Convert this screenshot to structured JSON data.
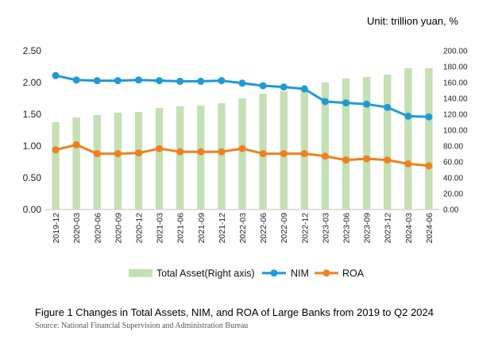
{
  "unit_label": "Unit: trillion yuan, %",
  "caption": "Figure 1 Changes in Total Assets, NIM, and ROA of Large Banks from 2019 to Q2 2024",
  "source": "Source: National Financial Supervision and Administration Bureau",
  "chart_data": {
    "type": "bar+line",
    "categories": [
      "2019-12",
      "2020-03",
      "2020-06",
      "2020-09",
      "2020-12",
      "2021-03",
      "2021-06",
      "2021-09",
      "2021-12",
      "2022-03",
      "2022-06",
      "2022-09",
      "2022-12",
      "2023-03",
      "2023-06",
      "2023-09",
      "2023-12",
      "2024-03",
      "2024-06"
    ],
    "left_axis": {
      "ylim": [
        0,
        2.5
      ],
      "ticks": [
        "0.00",
        "0.50",
        "1.00",
        "1.50",
        "2.00",
        "2.50"
      ],
      "tick_values": [
        0,
        0.5,
        1.0,
        1.5,
        2.0,
        2.5
      ]
    },
    "right_axis": {
      "ylim": [
        0,
        200
      ],
      "ticks": [
        "0.00",
        "20.00",
        "40.00",
        "60.00",
        "80.00",
        "100.00",
        "120.00",
        "140.00",
        "160.00",
        "180.00",
        "200.00"
      ],
      "tick_values": [
        0,
        20,
        40,
        60,
        80,
        100,
        120,
        140,
        160,
        180,
        200
      ]
    },
    "series": [
      {
        "name": "Total Asset(Right axis)",
        "type": "bar",
        "axis": "right",
        "color": "#c5e0b4",
        "values": [
          110,
          116,
          119,
          122,
          123,
          128,
          130,
          131,
          134,
          140,
          146,
          149,
          152,
          160,
          165,
          167,
          170,
          178,
          178
        ]
      },
      {
        "name": "NIM",
        "type": "line",
        "axis": "left",
        "color": "#1e9ad6",
        "values": [
          2.11,
          2.04,
          2.03,
          2.03,
          2.04,
          2.03,
          2.02,
          2.02,
          2.03,
          1.99,
          1.95,
          1.93,
          1.9,
          1.7,
          1.68,
          1.66,
          1.61,
          1.47,
          1.46
        ]
      },
      {
        "name": "ROA",
        "type": "line",
        "axis": "left",
        "color": "#f07f1e",
        "values": [
          0.94,
          1.02,
          0.88,
          0.88,
          0.89,
          0.96,
          0.91,
          0.91,
          0.91,
          0.96,
          0.88,
          0.88,
          0.88,
          0.84,
          0.78,
          0.8,
          0.78,
          0.72,
          0.69
        ]
      }
    ]
  }
}
